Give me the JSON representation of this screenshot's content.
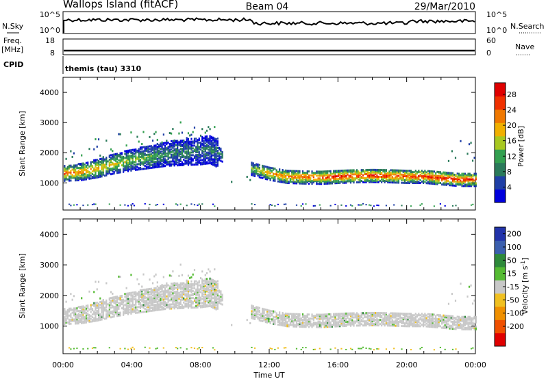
{
  "header": {
    "station": "Wallops Island (fitACF)",
    "beam": "Beam 04",
    "date": "29/Mar/2010"
  },
  "panels": {
    "nsky_label": "N.Sky",
    "nsky_ticks": [
      "10^5",
      "10^0"
    ],
    "nsearch_label": "N.Search",
    "nsearch_ticks": [
      "10^5",
      "10^0"
    ],
    "freq_label": "Freq.",
    "freq_unit": "[MHz]",
    "freq_ticks": [
      "18",
      "8"
    ],
    "nave_label": "Nave",
    "nave_ticks": [
      "60",
      "0"
    ],
    "cpid_label": "CPID",
    "cpid_value": "themis (tau) 3310"
  },
  "colors": {
    "power": [
      "#0000dd",
      "#1f3fa6",
      "#2a7a5a",
      "#33a050",
      "#a8c820",
      "#f0b000",
      "#f07800",
      "#f03000",
      "#e00000"
    ],
    "velocity": [
      "#2233aa",
      "#3b5fae",
      "#2e8a3a",
      "#55bb33",
      "#c8c8c8",
      "#f0c020",
      "#f09000",
      "#f05000",
      "#e00000"
    ]
  },
  "chart_data": [
    {
      "type": "heatmap",
      "title": "",
      "xlabel": "Time UT",
      "ylabel": "Slant Range [km]",
      "xticks": [
        "00:00",
        "04:00",
        "08:00",
        "12:00",
        "16:00",
        "20:00",
        "00:00"
      ],
      "xlim": [
        0,
        24
      ],
      "yticks": [
        "1000",
        "2000",
        "3000",
        "4000"
      ],
      "ylim": [
        100,
        4500
      ],
      "colorbar": {
        "label": "Power",
        "unit": "[dB]",
        "ticks": [
          "4",
          "8",
          "12",
          "16",
          "20",
          "24",
          "28"
        ],
        "range": [
          0,
          31
        ]
      },
      "echo_band": {
        "time_h": [
          0,
          1,
          2,
          3,
          4,
          5,
          6,
          7,
          8,
          8.5,
          11,
          12,
          13,
          14,
          15,
          16,
          17,
          18,
          19,
          20,
          21,
          22,
          23,
          24
        ],
        "center_km": [
          1350,
          1400,
          1520,
          1680,
          1800,
          1900,
          2000,
          2050,
          2100,
          2150,
          1500,
          1350,
          1250,
          1230,
          1220,
          1250,
          1270,
          1280,
          1270,
          1250,
          1250,
          1200,
          1150,
          1150
        ],
        "peak_power_db": [
          24,
          22,
          20,
          18,
          14,
          12,
          10,
          9,
          8,
          8,
          14,
          22,
          24,
          24,
          26,
          28,
          28,
          28,
          27,
          26,
          27,
          28,
          28,
          26
        ]
      }
    },
    {
      "type": "heatmap",
      "title": "",
      "xlabel": "Time UT",
      "ylabel": "Slant Range [km]",
      "xticks": [
        "00:00",
        "04:00",
        "08:00",
        "12:00",
        "16:00",
        "20:00",
        "00:00"
      ],
      "xlim": [
        0,
        24
      ],
      "yticks": [
        "1000",
        "2000",
        "3000",
        "4000"
      ],
      "ylim": [
        100,
        4500
      ],
      "colorbar": {
        "label": "Velocity",
        "unit": "[m s-1]",
        "ticks": [
          "200",
          "100",
          "50",
          "15",
          "-15",
          "-50",
          "-100",
          "-200"
        ],
        "range": [
          -250,
          250
        ]
      },
      "dominant_velocity_mps": 0
    }
  ]
}
